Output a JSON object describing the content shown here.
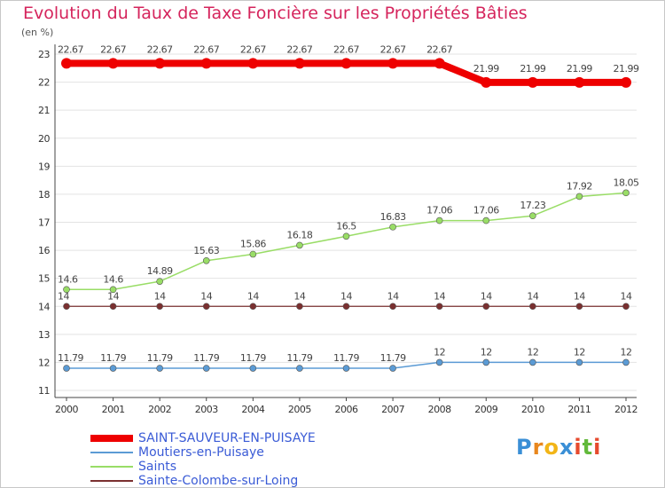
{
  "chart_data": {
    "type": "line",
    "title": "Evolution du Taux de Taxe Foncière sur les Propriétés Bâties",
    "ylabel": "(en %)",
    "xlabel": "",
    "ylim": [
      11,
      23
    ],
    "yticks": [
      11,
      12,
      13,
      14,
      15,
      16,
      17,
      18,
      19,
      20,
      21,
      22,
      23
    ],
    "categories": [
      "2000",
      "2001",
      "2002",
      "2003",
      "2004",
      "2005",
      "2006",
      "2007",
      "2008",
      "2009",
      "2010",
      "2011",
      "2012"
    ],
    "series": [
      {
        "name": "SAINT-SAUVEUR-EN-PUISAYE",
        "color": "#ee0000",
        "values": [
          22.67,
          22.67,
          22.67,
          22.67,
          22.67,
          22.67,
          22.67,
          22.67,
          22.67,
          21.99,
          21.99,
          21.99,
          21.99
        ],
        "labels": [
          "22.67",
          "22.67",
          "22.67",
          "22.67",
          "22.67",
          "22.67",
          "22.67",
          "22.67",
          "22.67",
          "21.99",
          "21.99",
          "21.99",
          "21.99"
        ]
      },
      {
        "name": "Moutiers-en-Puisaye",
        "color": "#5b9bd5",
        "values": [
          11.79,
          11.79,
          11.79,
          11.79,
          11.79,
          11.79,
          11.79,
          11.79,
          12,
          12,
          12,
          12,
          12
        ],
        "labels": [
          "11.79",
          "11.79",
          "11.79",
          "11.79",
          "11.79",
          "11.79",
          "11.79",
          "11.79",
          "12",
          "12",
          "12",
          "12",
          "12"
        ]
      },
      {
        "name": "Saints",
        "color": "#99dd66",
        "values": [
          14.6,
          14.6,
          14.89,
          15.63,
          15.86,
          16.18,
          16.5,
          16.83,
          17.06,
          17.06,
          17.23,
          17.92,
          18.05
        ],
        "labels": [
          "14.6",
          "14.6",
          "14.89",
          "15.63",
          "15.86",
          "16.18",
          "16.5",
          "16.83",
          "17.06",
          "17.06",
          "17.23",
          "17.92",
          "18.05"
        ]
      },
      {
        "name": "Sainte-Colombe-sur-Loing",
        "color": "#7a3030",
        "values": [
          14,
          14,
          14,
          14,
          14,
          14,
          14,
          14,
          14,
          14,
          14,
          14,
          14
        ],
        "labels": [
          "14",
          "14",
          "14",
          "14",
          "14",
          "14",
          "14",
          "14",
          "14",
          "14",
          "14",
          "14",
          "14"
        ]
      }
    ],
    "legend": "bottom-left"
  },
  "logo": {
    "letters": [
      "P",
      "r",
      "o",
      "x",
      "i",
      "t",
      "i"
    ],
    "colors": [
      "#3a8fd6",
      "#e8871e",
      "#f2b517",
      "#3a8fd6",
      "#e64a2e",
      "#62b93b",
      "#e64a2e"
    ]
  }
}
